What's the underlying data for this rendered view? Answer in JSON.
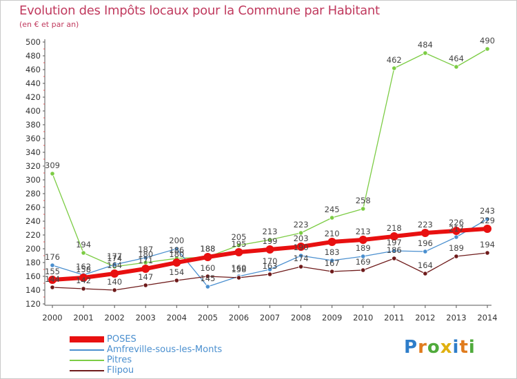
{
  "header": {
    "title": "Evolution des Impôts locaux pour la Commune par Habitant",
    "subtitle": "(en € et par an)"
  },
  "logo": {
    "text": "Proxiti",
    "colors": [
      "#2e7dc9",
      "#e07c1e",
      "#4faa3b",
      "#e0b010"
    ]
  },
  "chart_data": {
    "type": "line",
    "x": [
      2000,
      2001,
      2002,
      2003,
      2004,
      2005,
      2006,
      2007,
      2008,
      2009,
      2010,
      2011,
      2012,
      2013,
      2014
    ],
    "ylim": [
      120,
      500
    ],
    "yticks": [
      120,
      140,
      160,
      180,
      200,
      220,
      240,
      260,
      280,
      300,
      320,
      340,
      360,
      380,
      400,
      420,
      440,
      460,
      480,
      500
    ],
    "grid": false,
    "legend_position": "bottom-left",
    "series": [
      {
        "name": "POSES",
        "color": "#e81010",
        "values": [
          155,
          158,
          164,
          171,
          180,
          188,
          195,
          199,
          203,
          210,
          213,
          218,
          223,
          226,
          229
        ],
        "labels": [
          "155",
          "158",
          "164",
          "171",
          "180",
          "188",
          "195",
          "199",
          "203",
          "210",
          "213",
          "218",
          "223",
          "226",
          "229"
        ]
      },
      {
        "name": "Amfreville-sous-les-Monts",
        "color": "#4a8fcf",
        "values": [
          176,
          162,
          177,
          187,
          200,
          145,
          160,
          170,
          190,
          183,
          189,
          197,
          196,
          217,
          243
        ],
        "labels": [
          "176",
          "162",
          "177",
          "187",
          "200",
          "145",
          "160",
          "170",
          "190",
          "183",
          "189",
          "197",
          "196",
          "217",
          "243"
        ]
      },
      {
        "name": "Pitres",
        "color": "#7ccc44",
        "values": [
          309,
          194,
          174,
          180,
          186,
          188,
          205,
          213,
          223,
          245,
          258,
          462,
          484,
          464,
          490
        ],
        "labels": [
          "309",
          "194",
          "174",
          "180",
          "186",
          "188",
          "205",
          "213",
          "223",
          "245",
          "258",
          "462",
          "484",
          "464",
          "490"
        ]
      },
      {
        "name": "Flipou",
        "color": "#6e1a1a",
        "values": [
          144,
          142,
          140,
          147,
          154,
          160,
          158,
          163,
          174,
          167,
          169,
          186,
          164,
          189,
          194
        ],
        "labels": [
          "144",
          "142",
          "140",
          "147",
          "154",
          "160",
          "158",
          "163",
          "174",
          "167",
          "169",
          "186",
          "164",
          "189",
          "194"
        ]
      }
    ]
  }
}
